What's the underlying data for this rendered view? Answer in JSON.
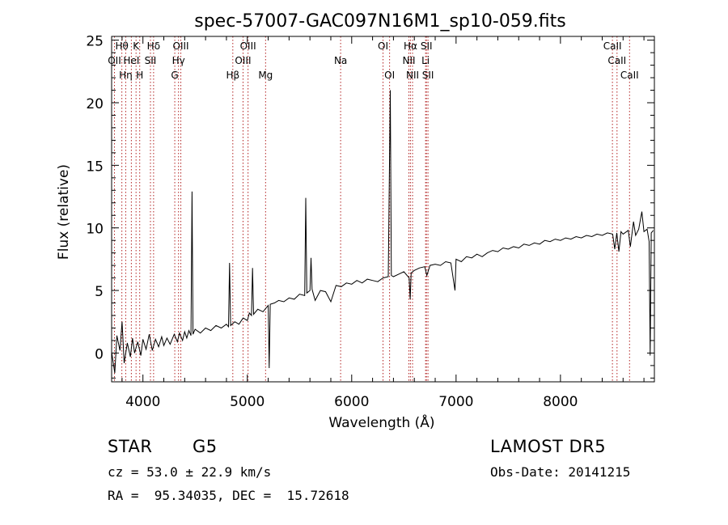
{
  "chart_data": {
    "type": "line",
    "title": "spec-57007-GAC097N16M1_sp10-059.fits",
    "xlabel": "Wavelength (Å)",
    "ylabel": "Flux (relative)",
    "xlim": [
      3700,
      8900
    ],
    "ylim": [
      -2.3,
      25.3
    ],
    "x_ticks": [
      4000,
      5000,
      6000,
      7000,
      8000
    ],
    "y_ticks": [
      0,
      5,
      10,
      15,
      20,
      25
    ],
    "grid": false,
    "colors": {
      "spectrum": "#000000",
      "lines": "#b22222",
      "labels": "#000000"
    },
    "series": [
      {
        "points": [
          [
            3700,
            0.1
          ],
          [
            3730,
            -1.6
          ],
          [
            3750,
            1.4
          ],
          [
            3780,
            0.2
          ],
          [
            3800,
            2.5
          ],
          [
            3820,
            -0.8
          ],
          [
            3850,
            0.8
          ],
          [
            3880,
            -0.3
          ],
          [
            3900,
            1.2
          ],
          [
            3920,
            0.0
          ],
          [
            3950,
            0.9
          ],
          [
            3980,
            -0.2
          ],
          [
            4000,
            1.1
          ],
          [
            4030,
            0.3
          ],
          [
            4060,
            1.5
          ],
          [
            4090,
            0.2
          ],
          [
            4120,
            1.1
          ],
          [
            4150,
            0.5
          ],
          [
            4180,
            1.3
          ],
          [
            4200,
            0.6
          ],
          [
            4230,
            1.2
          ],
          [
            4260,
            0.7
          ],
          [
            4300,
            1.5
          ],
          [
            4330,
            0.9
          ],
          [
            4350,
            1.6
          ],
          [
            4380,
            1.0
          ],
          [
            4400,
            1.7
          ],
          [
            4420,
            1.2
          ],
          [
            4440,
            1.8
          ],
          [
            4460,
            1.4
          ],
          [
            4470,
            12.9
          ],
          [
            4480,
            1.5
          ],
          [
            4500,
            1.9
          ],
          [
            4550,
            1.6
          ],
          [
            4600,
            2.0
          ],
          [
            4650,
            1.8
          ],
          [
            4700,
            2.2
          ],
          [
            4750,
            2.0
          ],
          [
            4800,
            2.3
          ],
          [
            4820,
            2.1
          ],
          [
            4830,
            7.2
          ],
          [
            4840,
            2.2
          ],
          [
            4880,
            2.5
          ],
          [
            4920,
            2.3
          ],
          [
            4960,
            2.8
          ],
          [
            5000,
            2.6
          ],
          [
            5020,
            3.2
          ],
          [
            5040,
            3.0
          ],
          [
            5050,
            6.8
          ],
          [
            5060,
            3.1
          ],
          [
            5100,
            3.5
          ],
          [
            5150,
            3.3
          ],
          [
            5200,
            3.8
          ],
          [
            5210,
            -1.2
          ],
          [
            5220,
            3.9
          ],
          [
            5260,
            4.0
          ],
          [
            5300,
            4.2
          ],
          [
            5350,
            4.1
          ],
          [
            5400,
            4.4
          ],
          [
            5450,
            4.3
          ],
          [
            5500,
            4.7
          ],
          [
            5550,
            4.6
          ],
          [
            5560,
            12.4
          ],
          [
            5570,
            4.8
          ],
          [
            5600,
            5.0
          ],
          [
            5610,
            7.6
          ],
          [
            5620,
            5.1
          ],
          [
            5650,
            4.2
          ],
          [
            5700,
            5.0
          ],
          [
            5750,
            4.9
          ],
          [
            5800,
            4.1
          ],
          [
            5850,
            5.4
          ],
          [
            5900,
            5.3
          ],
          [
            5950,
            5.6
          ],
          [
            6000,
            5.5
          ],
          [
            6050,
            5.8
          ],
          [
            6100,
            5.6
          ],
          [
            6150,
            5.9
          ],
          [
            6200,
            5.8
          ],
          [
            6250,
            5.7
          ],
          [
            6300,
            6.0
          ],
          [
            6350,
            6.1
          ],
          [
            6370,
            21.0
          ],
          [
            6380,
            6.2
          ],
          [
            6400,
            6.1
          ],
          [
            6450,
            6.3
          ],
          [
            6500,
            6.5
          ],
          [
            6550,
            6.0
          ],
          [
            6560,
            4.3
          ],
          [
            6570,
            6.4
          ],
          [
            6600,
            6.6
          ],
          [
            6650,
            6.8
          ],
          [
            6700,
            6.9
          ],
          [
            6720,
            6.2
          ],
          [
            6750,
            7.0
          ],
          [
            6800,
            7.1
          ],
          [
            6850,
            7.0
          ],
          [
            6900,
            7.3
          ],
          [
            6950,
            7.2
          ],
          [
            6990,
            5.0
          ],
          [
            7000,
            7.5
          ],
          [
            7050,
            7.3
          ],
          [
            7100,
            7.7
          ],
          [
            7150,
            7.6
          ],
          [
            7200,
            7.9
          ],
          [
            7250,
            7.7
          ],
          [
            7300,
            8.0
          ],
          [
            7350,
            8.2
          ],
          [
            7400,
            8.1
          ],
          [
            7450,
            8.4
          ],
          [
            7500,
            8.3
          ],
          [
            7550,
            8.5
          ],
          [
            7600,
            8.4
          ],
          [
            7650,
            8.7
          ],
          [
            7700,
            8.6
          ],
          [
            7750,
            8.8
          ],
          [
            7800,
            8.7
          ],
          [
            7850,
            9.0
          ],
          [
            7900,
            8.9
          ],
          [
            7950,
            9.1
          ],
          [
            8000,
            9.0
          ],
          [
            8050,
            9.2
          ],
          [
            8100,
            9.1
          ],
          [
            8150,
            9.3
          ],
          [
            8200,
            9.2
          ],
          [
            8250,
            9.4
          ],
          [
            8300,
            9.3
          ],
          [
            8350,
            9.5
          ],
          [
            8400,
            9.4
          ],
          [
            8450,
            9.6
          ],
          [
            8500,
            9.5
          ],
          [
            8520,
            8.3
          ],
          [
            8540,
            9.6
          ],
          [
            8560,
            8.1
          ],
          [
            8580,
            9.7
          ],
          [
            8600,
            9.5
          ],
          [
            8650,
            9.8
          ],
          [
            8670,
            8.5
          ],
          [
            8700,
            10.5
          ],
          [
            8720,
            9.4
          ],
          [
            8750,
            9.9
          ],
          [
            8780,
            11.3
          ],
          [
            8800,
            9.7
          ],
          [
            8830,
            9.9
          ],
          [
            8850,
            8.9
          ],
          [
            8860,
            -0.2
          ],
          [
            8870,
            9.6
          ],
          [
            8890,
            9.8
          ]
        ]
      }
    ],
    "line_markers": [
      {
        "label": "OII",
        "x": 3727,
        "row": 1
      },
      {
        "label": "Hθ",
        "x": 3798,
        "row": 0
      },
      {
        "label": "Hη",
        "x": 3835,
        "row": 2
      },
      {
        "label": "HeI",
        "x": 3889,
        "row": 1
      },
      {
        "label": "K",
        "x": 3934,
        "row": 0
      },
      {
        "label": "H",
        "x": 3969,
        "row": 2
      },
      {
        "label": "Hδ",
        "x": 4102,
        "row": 0
      },
      {
        "label": "SII",
        "x": 4072,
        "row": 1
      },
      {
        "label": "OIII",
        "x": 4363,
        "row": 0
      },
      {
        "label": "Hγ",
        "x": 4341,
        "row": 1
      },
      {
        "label": "G",
        "x": 4305,
        "row": 2
      },
      {
        "label": "Hβ",
        "x": 4861,
        "row": 2
      },
      {
        "label": "OIII",
        "x": 5007,
        "row": 0
      },
      {
        "label": "OIII",
        "x": 4959,
        "row": 1
      },
      {
        "label": "Mg",
        "x": 5175,
        "row": 2
      },
      {
        "label": "Na",
        "x": 5894,
        "row": 1
      },
      {
        "label": "OI",
        "x": 6300,
        "row": 0
      },
      {
        "label": "OI",
        "x": 6363,
        "row": 2
      },
      {
        "label": "Hα",
        "x": 6563,
        "row": 0
      },
      {
        "label": "NII",
        "x": 6548,
        "row": 1
      },
      {
        "label": "NII",
        "x": 6583,
        "row": 2
      },
      {
        "label": "SII",
        "x": 6716,
        "row": 0
      },
      {
        "label": "Li",
        "x": 6708,
        "row": 1
      },
      {
        "label": "SII",
        "x": 6731,
        "row": 2
      },
      {
        "label": "CaII",
        "x": 8498,
        "row": 0
      },
      {
        "label": "CaII",
        "x": 8542,
        "row": 1
      },
      {
        "label": "CaII",
        "x": 8662,
        "row": 2
      }
    ]
  },
  "info": {
    "class_label": "STAR",
    "subclass": "G5",
    "survey": "LAMOST DR5",
    "redshift": "cz = 53.0 ± 22.9 km/s",
    "obs_date": "Obs-Date: 20141215",
    "coords": "RA =  95.34035, DEC =  15.72618"
  }
}
